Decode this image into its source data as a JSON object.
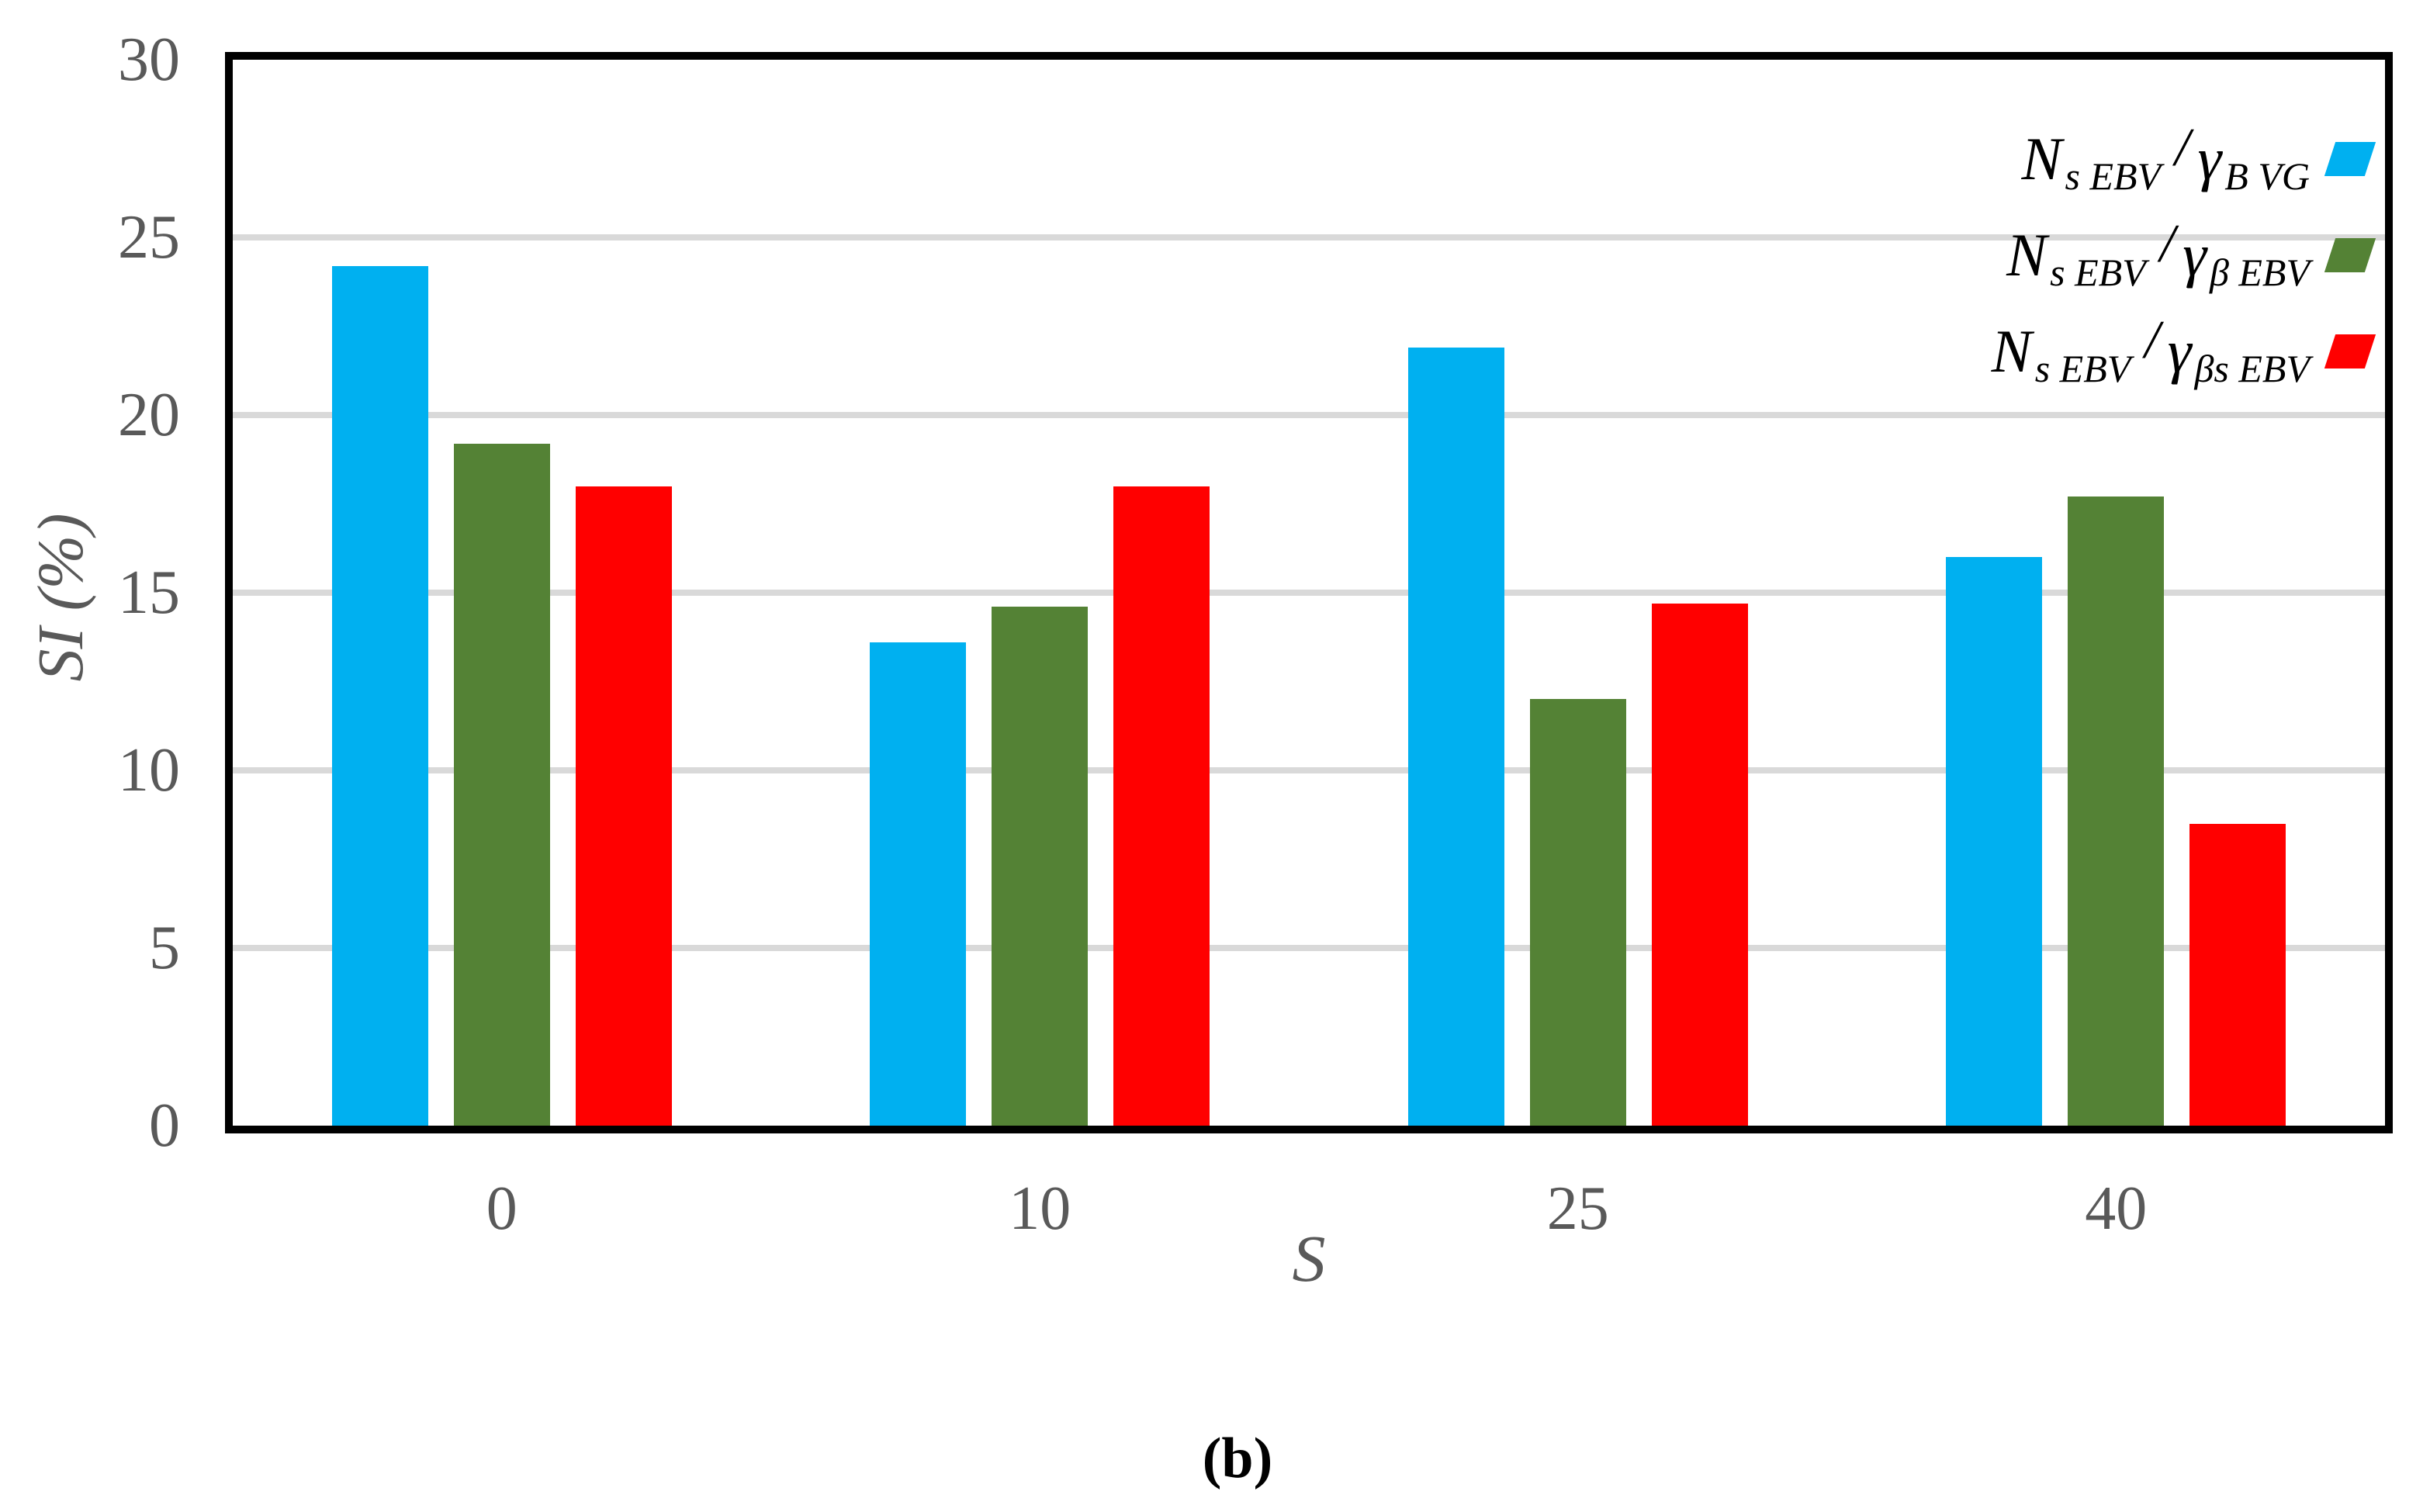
{
  "figure": {
    "caption": "(b)"
  },
  "chart_data": {
    "type": "bar",
    "title": "",
    "xlabel": "S",
    "ylabel": "SI (%)",
    "ylim": [
      0,
      30
    ],
    "yticks": [
      0,
      5,
      10,
      15,
      20,
      25,
      30
    ],
    "grid": true,
    "legend_position": "top-right",
    "categories": [
      "0",
      "10",
      "25",
      "40"
    ],
    "series": [
      {
        "name": "Ns EBV / γB VG",
        "color": "#00B0F0",
        "values": [
          24.2,
          13.6,
          21.9,
          16.0
        ]
      },
      {
        "name": "Ns EBV / γβ EBV",
        "color": "#548235",
        "values": [
          19.2,
          14.6,
          12.0,
          17.7
        ]
      },
      {
        "name": "Ns EBV / γβs EBV",
        "color": "#FF0000",
        "values": [
          18.0,
          18.0,
          14.7,
          8.5
        ]
      }
    ]
  },
  "legend": {
    "items": [
      {
        "base": "N",
        "base_sub": "s EBV",
        "separator": "/",
        "symbol": "γ",
        "symbol_sub": "B VG"
      },
      {
        "base": "N",
        "base_sub": "s EBV",
        "separator": "/",
        "symbol": "γ",
        "symbol_sub": "β EBV"
      },
      {
        "base": "N",
        "base_sub": "s EBV",
        "separator": "/",
        "symbol": "γ",
        "symbol_sub": "βs EBV"
      }
    ]
  },
  "colors": {
    "gridline": "#D9D9D9",
    "axis_frame": "#000000",
    "tick_label": "#595959"
  }
}
